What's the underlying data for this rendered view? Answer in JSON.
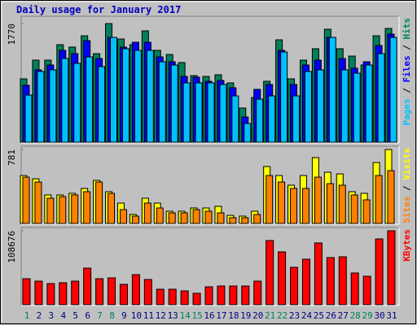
{
  "chart_data": [
    {
      "type": "bar",
      "title": "Daily usage for January 2017",
      "legend_separator": " / ",
      "ylim": [
        0,
        1770
      ],
      "yticks": [
        1770
      ],
      "series": [
        {
          "name": "Hits",
          "color": "#00805c",
          "values": [
            951,
            1228,
            1228,
            1457,
            1421,
            1589,
            1324,
            1770,
            1541,
            1457,
            1662,
            1373,
            1312,
            1192,
            999,
            987,
            1011,
            891,
            518,
            674,
            915,
            1529,
            951,
            1228,
            1397,
            1686,
            1397,
            1288,
            1156,
            1589,
            1698
          ]
        },
        {
          "name": "Files",
          "color": "#0000ff",
          "values": [
            855,
            1084,
            1156,
            1373,
            1324,
            1517,
            1252,
            1565,
            1421,
            1493,
            1493,
            1276,
            1204,
            987,
            975,
            915,
            927,
            819,
            385,
            795,
            867,
            1373,
            867,
            1156,
            1228,
            1565,
            1252,
            1108,
            1204,
            1445,
            1613
          ]
        },
        {
          "name": "Pages",
          "color": "#00c0ff",
          "values": [
            710,
            1060,
            1084,
            1252,
            1180,
            1276,
            1132,
            1565,
            1397,
            1373,
            1373,
            1204,
            1156,
            891,
            891,
            891,
            867,
            698,
            289,
            650,
            698,
            1349,
            698,
            1060,
            1084,
            1565,
            1084,
            1035,
            1156,
            1324,
            1565
          ]
        }
      ]
    },
    {
      "type": "bar",
      "legend_separator": " / ",
      "ylim": [
        0,
        781
      ],
      "yticks": [
        781
      ],
      "series": [
        {
          "name": "Visits",
          "color": "#ffff00",
          "values": [
            509,
            475,
            306,
            306,
            323,
            374,
            458,
            340,
            221,
            102,
            272,
            221,
            136,
            136,
            170,
            170,
            187,
            93,
            85,
            136,
            603,
            509,
            408,
            509,
            696,
            543,
            526,
            340,
            323,
            645,
            781
          ]
        },
        {
          "name": "Sites",
          "color": "#ff8000",
          "values": [
            492,
            441,
            272,
            289,
            306,
            340,
            441,
            323,
            153,
            85,
            221,
            170,
            119,
            119,
            153,
            136,
            119,
            68,
            68,
            102,
            509,
            441,
            374,
            374,
            492,
            424,
            408,
            306,
            255,
            509,
            560
          ]
        }
      ]
    },
    {
      "type": "bar",
      "ylim": [
        0,
        108676
      ],
      "yticks": [
        108676
      ],
      "categories": [
        "1",
        "2",
        "3",
        "4",
        "5",
        "6",
        "7",
        "8",
        "9",
        "10",
        "11",
        "12",
        "13",
        "14",
        "15",
        "16",
        "17",
        "18",
        "19",
        "20",
        "21",
        "22",
        "23",
        "24",
        "25",
        "26",
        "27",
        "28",
        "29",
        "30",
        "31"
      ],
      "category_colors": [
        "#00805c",
        "#000080",
        "#000080",
        "#000080",
        "#000080",
        "#000080",
        "#00805c",
        "#00805c",
        "#000080",
        "#000080",
        "#000080",
        "#000080",
        "#000080",
        "#00805c",
        "#00805c",
        "#000080",
        "#000080",
        "#000080",
        "#000080",
        "#000080",
        "#00805c",
        "#00805c",
        "#000080",
        "#000080",
        "#000080",
        "#000080",
        "#000080",
        "#00805c",
        "#00805c",
        "#000080",
        "#000080"
      ],
      "series": [
        {
          "name": "KBytes",
          "color": "#ff0000",
          "values": [
            38980,
            35430,
            31890,
            33070,
            35430,
            54330,
            38980,
            40160,
            30710,
            44880,
            37800,
            23620,
            23620,
            21260,
            17720,
            27160,
            28340,
            28340,
            28340,
            35430,
            94480,
            77950,
            55510,
            67320,
            90940,
            69680,
            70860,
            47240,
            42520,
            96840,
            108676
          ]
        }
      ]
    }
  ]
}
